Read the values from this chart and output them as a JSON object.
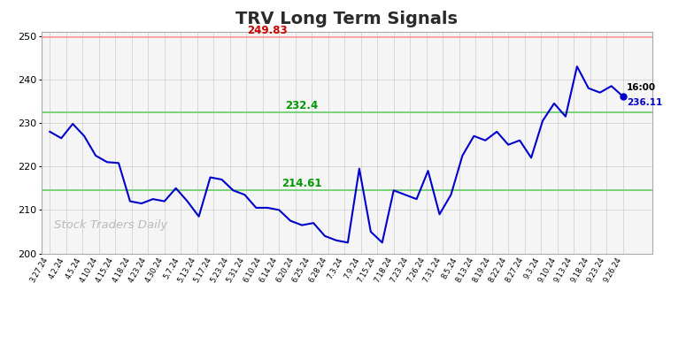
{
  "title": "TRV Long Term Signals",
  "title_color": "#2b2b2b",
  "title_fontsize": 14,
  "red_line": 249.83,
  "green_line_upper": 232.4,
  "green_line_lower": 214.61,
  "last_price": 236.11,
  "last_time": "16:00",
  "watermark": "Stock Traders Daily",
  "ylim": [
    200,
    251
  ],
  "yticks": [
    200,
    210,
    220,
    230,
    240,
    250
  ],
  "x_labels": [
    "3.27.24",
    "4.2.24",
    "4.5.24",
    "4.10.24",
    "4.15.24",
    "4.18.24",
    "4.23.24",
    "4.30.24",
    "5.7.24",
    "5.13.24",
    "5.17.24",
    "5.23.24",
    "5.31.24",
    "6.10.24",
    "6.14.24",
    "6.20.24",
    "6.25.24",
    "6.28.24",
    "7.3.24",
    "7.9.24",
    "7.15.24",
    "7.18.24",
    "7.23.24",
    "7.26.24",
    "7.31.24",
    "8.5.24",
    "8.13.24",
    "8.19.24",
    "8.22.24",
    "8.27.24",
    "9.3.24",
    "9.10.24",
    "9.13.24",
    "9.18.24",
    "9.23.24",
    "9.26.24"
  ],
  "prices": [
    228.0,
    226.5,
    229.8,
    227.0,
    222.5,
    221.0,
    220.8,
    212.0,
    211.5,
    212.5,
    212.0,
    215.0,
    212.0,
    208.5,
    217.5,
    217.0,
    214.5,
    213.5,
    210.5,
    210.5,
    210.0,
    207.5,
    206.5,
    207.0,
    204.0,
    203.0,
    202.5,
    219.5,
    205.0,
    202.5,
    214.5,
    213.5,
    212.5,
    219.0,
    209.0,
    213.5,
    222.5,
    227.0,
    226.0,
    228.0,
    225.0,
    226.0,
    222.0,
    230.5,
    234.5,
    231.5,
    243.0,
    238.0,
    237.0,
    238.5,
    236.11
  ],
  "line_color": "#0000cc",
  "background_color": "#ffffff",
  "plot_bg_color": "#f5f5f5",
  "grid_color": "#cccccc",
  "red_line_color": "#ff9999",
  "green_line_color": "#66cc66",
  "red_label_color": "#cc0000",
  "green_label_color": "#009900"
}
